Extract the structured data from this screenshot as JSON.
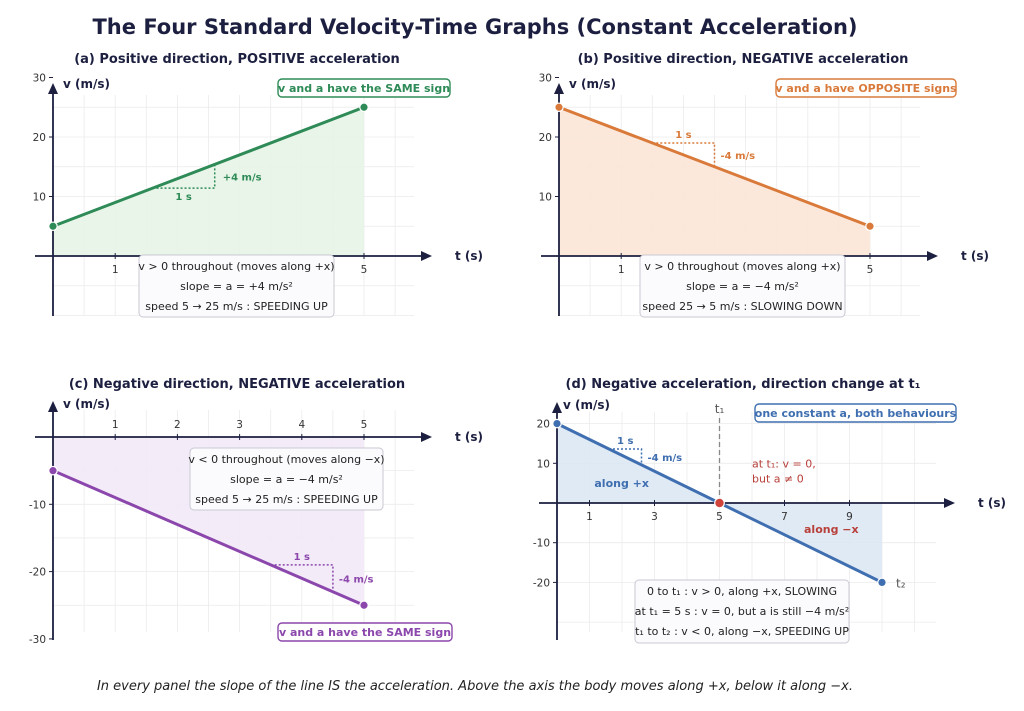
{
  "title": "The Four Standard Velocity-Time Graphs (Constant Acceleration)",
  "caption": "In every panel the slope of the line IS the acceleration. Above the axis the body moves along +x, below it along −x.",
  "chart_data": [
    {
      "id": "a",
      "type": "line",
      "title": "(a)  Positive direction, POSITIVE acceleration",
      "xlabel": "t (s)",
      "ylabel": "v (m/s)",
      "xlim": [
        0,
        6
      ],
      "ylim": [
        -10,
        30
      ],
      "xticks": [
        1,
        5
      ],
      "yticks": [
        10,
        20,
        30
      ],
      "grid": true,
      "color": "#2e8b57",
      "fill": "#e5f4e6",
      "series": [
        {
          "x": [
            0,
            5
          ],
          "y": [
            5,
            25
          ]
        }
      ],
      "slope_triangle": {
        "x0": 1.6,
        "y0": 11.4,
        "x1": 2.6,
        "y1": 15.4,
        "run_label": "1 s",
        "rise_label": "+4 m/s"
      },
      "badge": {
        "text": "v and a have the SAME sign",
        "position": "top-right"
      },
      "info": [
        "v > 0 throughout  (moves along +x)",
        "slope  = a = +4 m/s²",
        "speed 5  →  25 m/s :  SPEEDING UP"
      ]
    },
    {
      "id": "b",
      "type": "line",
      "title": "(b)  Positive direction, NEGATIVE acceleration",
      "xlabel": "t (s)",
      "ylabel": "v (m/s)",
      "xlim": [
        0,
        6
      ],
      "ylim": [
        -10,
        30
      ],
      "xticks": [
        1,
        5
      ],
      "yticks": [
        10,
        20,
        30
      ],
      "grid": true,
      "color": "#d97a3a",
      "fill": "#fbe6d7",
      "series": [
        {
          "x": [
            0,
            5
          ],
          "y": [
            25,
            5
          ]
        }
      ],
      "slope_triangle": {
        "x0": 1.5,
        "y0": 19,
        "x1": 2.5,
        "y1": 15,
        "run_label": "1 s",
        "rise_label": "-4 m/s"
      },
      "badge": {
        "text": "v and a have OPPOSITE signs",
        "position": "top-right"
      },
      "info": [
        "v > 0 throughout  (moves along +x)",
        "slope  = a = −4 m/s²",
        "speed 25  →  5 m/s :  SLOWING DOWN"
      ]
    },
    {
      "id": "c",
      "type": "line",
      "title": "(c)  Negative direction, NEGATIVE acceleration",
      "xlabel": "t (s)",
      "ylabel": "v (m/s)",
      "xlim": [
        0,
        6
      ],
      "ylim": [
        -30,
        5
      ],
      "xticks": [
        1,
        2,
        3,
        4,
        5
      ],
      "yticks": [
        -10,
        -20,
        -30
      ],
      "grid": true,
      "color": "#8b47ac",
      "fill": "#f3e9f8",
      "series": [
        {
          "x": [
            0,
            5
          ],
          "y": [
            -5,
            -25
          ]
        }
      ],
      "slope_triangle": {
        "x0": 3.5,
        "y0": -19,
        "x1": 4.5,
        "y1": -23,
        "run_label": "1 s",
        "rise_label": "-4 m/s"
      },
      "badge": {
        "text": "v and a have the SAME sign",
        "position": "bottom-right"
      },
      "info": [
        "v < 0 throughout  (moves along −x)",
        "slope  = a = −4 m/s²",
        "speed 5  →  25 m/s :  SPEEDING UP"
      ]
    },
    {
      "id": "d",
      "type": "line",
      "title": "(d)  Negative acceleration, direction change at t₁",
      "xlabel": "t (s)",
      "ylabel": "v (m/s)",
      "xlim": [
        0,
        12
      ],
      "ylim": [
        -30,
        25
      ],
      "xticks": [
        1,
        3,
        5,
        7,
        9
      ],
      "yticks": [
        20,
        10,
        -10,
        -20
      ],
      "grid": true,
      "color": "#3f6fb0",
      "fill": "#dde8f4",
      "series": [
        {
          "x": [
            0,
            10
          ],
          "y": [
            20,
            -20
          ]
        }
      ],
      "slope_triangle": {
        "x0": 1.6,
        "y0": 13.6,
        "x1": 2.6,
        "y1": 9.6,
        "run_label": "1 s",
        "rise_label": "-4 m/s"
      },
      "t1_marker": {
        "x": 5,
        "label": "t₁"
      },
      "end_label": "t₂",
      "badge": {
        "text": "one constant a, both behaviours",
        "position": "top-right"
      },
      "region_labels": {
        "above": "along +x",
        "below": "along −x"
      },
      "note": [
        "at t₁:  v = 0,",
        "but a  ≠  0"
      ],
      "info": [
        "0 to t₁ :  v > 0, along +x, SLOWING",
        "at t₁ = 5 s :  v = 0, but a is still −4 m/s²",
        "t₁ to t₂ :  v < 0, along −x, SPEEDING UP"
      ]
    }
  ]
}
